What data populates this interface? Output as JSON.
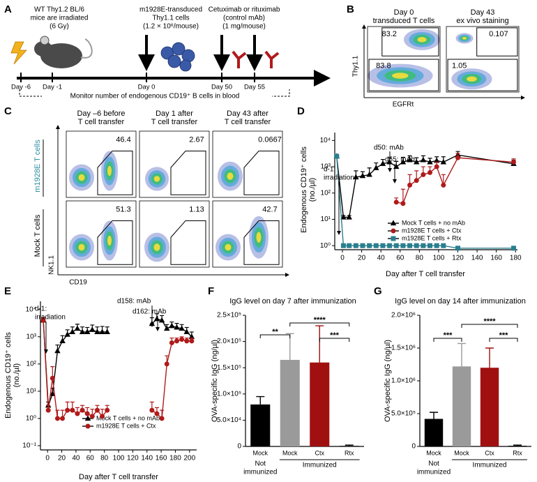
{
  "panel_labels": [
    "A",
    "B",
    "C",
    "D",
    "E",
    "F",
    "G"
  ],
  "schematic": {
    "mice": [
      "WT Thy1.2 BL/6",
      "mice are irradiated",
      "(6 Gy)"
    ],
    "cells": [
      "m1928E-transduced",
      "Thy1.1 cells",
      "(1.2 × 10⁶/mouse)"
    ],
    "mab": [
      "Cetuximab or rituximab",
      "(control mAb)",
      "(1 mg/mouse)"
    ],
    "timeline": [
      "Day -6",
      "Day -1",
      "Day 0",
      "Day 50",
      "Day 55"
    ],
    "monitor": "Monitor number of endogenous CD19⁺ B cells in blood"
  },
  "flow_b": {
    "columns": [
      [
        "Day 0",
        "transduced T cells"
      ],
      [
        "Day 43",
        "ex vivo staining"
      ]
    ],
    "gates": [
      [
        83.2,
        83.8
      ],
      [
        0.107,
        1.05
      ]
    ],
    "y_axis": "Thy1.1",
    "x_axis": "EGFRt"
  },
  "flow_c": {
    "columns": [
      [
        "Day –6 before",
        "T cell transfer"
      ],
      [
        "Day 1 after",
        "T cell transfer"
      ],
      [
        "Day 43 after",
        "T cell transfer"
      ]
    ],
    "rows": [
      "m1928E T cells",
      "Mock T cells"
    ],
    "gates": [
      [
        46.4,
        2.67,
        0.0667
      ],
      [
        51.3,
        1.13,
        42.7
      ]
    ],
    "y_axis": "NK1.1",
    "x_axis": "CD19"
  },
  "chart_data": [
    {
      "type": "line",
      "log_y": true,
      "ylabel": [
        "Endogenous CD19⁺ cells",
        "(no./µl)"
      ],
      "xlabel": "Day after T cell transfer",
      "x": [
        -6,
        1,
        7,
        14,
        21,
        28,
        35,
        42,
        49,
        56,
        63,
        70,
        77,
        84,
        91,
        98,
        105,
        120,
        178
      ],
      "series": [
        {
          "name": "Mock T cells + no mAb",
          "color": "#000000",
          "marker": "triangle",
          "values": [
            2500,
            12,
            12,
            400,
            450,
            500,
            900,
            1300,
            1500,
            1000,
            1500,
            1800,
            1500,
            1800,
            1500,
            1700,
            1500,
            2800,
            1300
          ],
          "errors": [
            500,
            2,
            2,
            300,
            200,
            400,
            500,
            600,
            700,
            600,
            800,
            800,
            700,
            800,
            600,
            700,
            900,
            1000,
            500
          ]
        },
        {
          "name": "m1928E T cells + Ctx",
          "color": "#b01a1a",
          "marker": "circle",
          "values": [
            2500,
            null,
            null,
            null,
            null,
            null,
            null,
            null,
            null,
            45,
            40,
            200,
            300,
            500,
            600,
            1000,
            200,
            2200,
            1500
          ],
          "errors": [
            500,
            null,
            null,
            null,
            null,
            null,
            null,
            null,
            null,
            20,
            100,
            300,
            400,
            500,
            400,
            500,
            300,
            1000,
            500
          ]
        },
        {
          "name": "m1928E T cells + Rtx",
          "color": "#2a7f8f",
          "marker": "square",
          "values": [
            2500,
            1,
            1,
            1,
            1,
            1,
            1,
            1,
            1,
            1,
            1,
            1,
            1,
            1,
            1,
            1,
            1,
            0.8,
            0.8
          ]
        }
      ],
      "xlim": [
        -8,
        182
      ],
      "xticks": [
        0,
        20,
        40,
        60,
        80,
        100,
        120,
        140,
        160,
        180
      ],
      "ylim": [
        0.7,
        20000
      ],
      "yticks": [
        {
          "value": 1,
          "label": "10⁰"
        },
        {
          "value": 10,
          "label": "10¹"
        },
        {
          "value": 100,
          "label": "10²"
        },
        {
          "value": 1000,
          "label": "10³"
        },
        {
          "value": 10000,
          "label": "10⁴"
        }
      ],
      "annotations": [
        "d-1:",
        "irradiation",
        "d50: mAb",
        "d55: mAb"
      ],
      "legend": "lower right"
    },
    {
      "type": "line",
      "log_y": true,
      "ylabel": [
        "Endogenous CD19⁺ cells",
        "(no./µl)"
      ],
      "xlabel": "Day after T cell transfer",
      "x": [
        -6,
        1,
        7,
        14,
        21,
        28,
        35,
        42,
        49,
        56,
        63,
        70,
        77,
        84,
        120,
        147,
        154,
        161,
        168,
        175,
        182,
        189,
        196,
        203
      ],
      "series": [
        {
          "name": "Mock T cells + no mAb",
          "color": "#000000",
          "marker": "triangle",
          "values": [
            4000,
            3,
            8,
            300,
            700,
            1200,
            1500,
            2000,
            1500,
            1500,
            1800,
            1500,
            1500,
            1500,
            null,
            3000,
            4500,
            4000,
            2000,
            2500,
            2200,
            2000,
            1500,
            1000
          ],
          "errors": [
            1000,
            1,
            5,
            200,
            400,
            600,
            800,
            900,
            800,
            700,
            900,
            800,
            900,
            800,
            null,
            2000,
            2500,
            2000,
            800,
            1000,
            900,
            800,
            700,
            500
          ]
        },
        {
          "name": "m1928E T cells + Ctx",
          "color": "#b01a1a",
          "marker": "circle",
          "values": [
            4000,
            2,
            30,
            1,
            1,
            2,
            2,
            1.5,
            2,
            1.5,
            1.2,
            2,
            1.2,
            2,
            null,
            2,
            1.5,
            1,
            100,
            600,
            700,
            800,
            700,
            700
          ],
          "errors": [
            1000,
            1,
            50,
            1,
            1,
            2,
            2,
            1,
            1,
            1,
            1,
            1,
            1,
            1,
            null,
            2,
            1,
            1,
            100,
            300,
            200,
            200,
            200,
            200
          ]
        }
      ],
      "xlim": [
        -10,
        210
      ],
      "xticks": [
        0,
        20,
        40,
        60,
        80,
        100,
        120,
        140,
        160,
        180,
        200
      ],
      "ylim": [
        0.07,
        20000
      ],
      "yticks": [
        {
          "value": 0.1,
          "label": "10⁻¹"
        },
        {
          "value": 1,
          "label": "10⁰"
        },
        {
          "value": 10,
          "label": "10¹"
        },
        {
          "value": 100,
          "label": "10²"
        },
        {
          "value": 1000,
          "label": "10³"
        },
        {
          "value": 10000,
          "label": "10⁴"
        }
      ],
      "annotations": [
        "d-1:",
        "irradiation",
        "d158: mAb",
        "d162: mAb"
      ],
      "legend": "lower right"
    },
    {
      "type": "bar",
      "title": "IgG level on day 7 after immunization",
      "ylabel": "OVA-specific IgG (ng/µl)",
      "categories": [
        "Mock",
        "Mock",
        "Ctx",
        "Rtx"
      ],
      "values": [
        80000,
        165000,
        160000,
        1000
      ],
      "errors": [
        15000,
        50000,
        70000,
        1500
      ],
      "colors": [
        "#000000",
        "#9a9a9a",
        "#a01010",
        "#000000"
      ],
      "groups": [
        [
          "Not",
          "immunized"
        ],
        [
          "Immunized"
        ]
      ],
      "significance": [
        "**",
        "****",
        "***"
      ],
      "ylim": [
        0,
        250000
      ],
      "yticks": [
        0,
        {
          "value": 50000,
          "label": "5.0×10⁴"
        },
        {
          "value": 100000,
          "label": "1.0×10⁵"
        },
        {
          "value": 150000,
          "label": "1.5×10⁵"
        },
        {
          "value": 200000,
          "label": "2.0×10⁵"
        },
        {
          "value": 250000,
          "label": "2.5×10⁵"
        }
      ]
    },
    {
      "type": "bar",
      "title": "IgG level on day 14 after immunization",
      "ylabel": "OVA-specific IgG (ng/µl)",
      "categories": [
        "Mock",
        "Mock",
        "Ctx",
        "Rtx"
      ],
      "values": [
        420000,
        1220000,
        1200000,
        10000
      ],
      "errors": [
        100000,
        350000,
        300000,
        10000
      ],
      "colors": [
        "#000000",
        "#9a9a9a",
        "#a01010",
        "#000000"
      ],
      "groups": [
        [
          "Not",
          "immunized"
        ],
        [
          "Immunized"
        ]
      ],
      "significance": [
        "***",
        "****",
        "***"
      ],
      "ylim": [
        0,
        2000000
      ],
      "yticks": [
        0,
        {
          "value": 500000,
          "label": "5.0×10⁵"
        },
        {
          "value": 1000000,
          "label": "1.0×10⁶"
        },
        {
          "value": 1500000,
          "label": "1.5×10⁶"
        },
        {
          "value": 2000000,
          "label": "2.0×10⁶"
        }
      ]
    }
  ]
}
